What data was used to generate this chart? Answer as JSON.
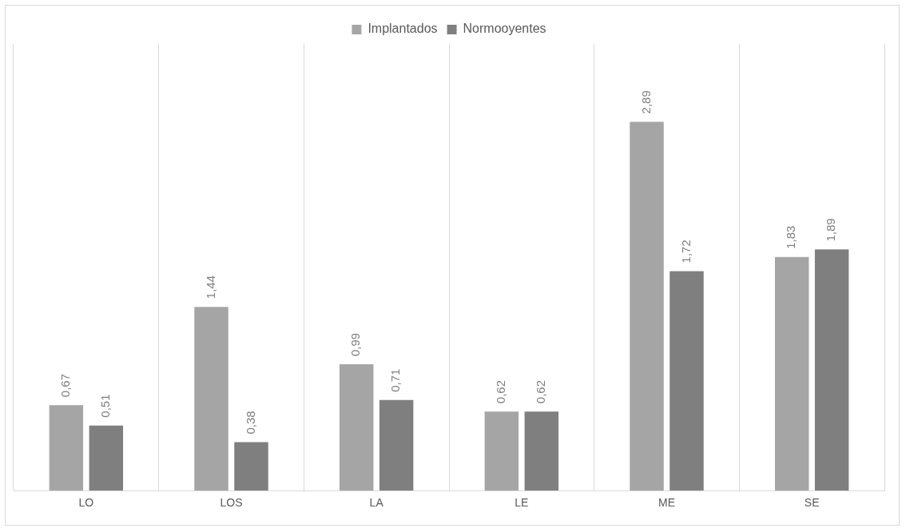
{
  "chart_data": {
    "type": "bar",
    "categories": [
      "LO",
      "LOS",
      "LA",
      "LE",
      "ME",
      "SE"
    ],
    "series": [
      {
        "name": "Implantados",
        "color": "#a5a5a5",
        "values": [
          0.67,
          1.44,
          0.99,
          0.62,
          2.89,
          1.83
        ],
        "value_labels": [
          "0,67",
          "1,44",
          "0,99",
          "0,62",
          "2,89",
          "1,83"
        ]
      },
      {
        "name": "Normooyentes",
        "color": "#7f7f7f",
        "values": [
          0.51,
          0.38,
          0.71,
          0.62,
          1.72,
          1.89
        ],
        "value_labels": [
          "0,51",
          "0,38",
          "0,71",
          "0,62",
          "1,72",
          "1,89"
        ]
      }
    ],
    "legend": "top",
    "grid": "x"
  }
}
